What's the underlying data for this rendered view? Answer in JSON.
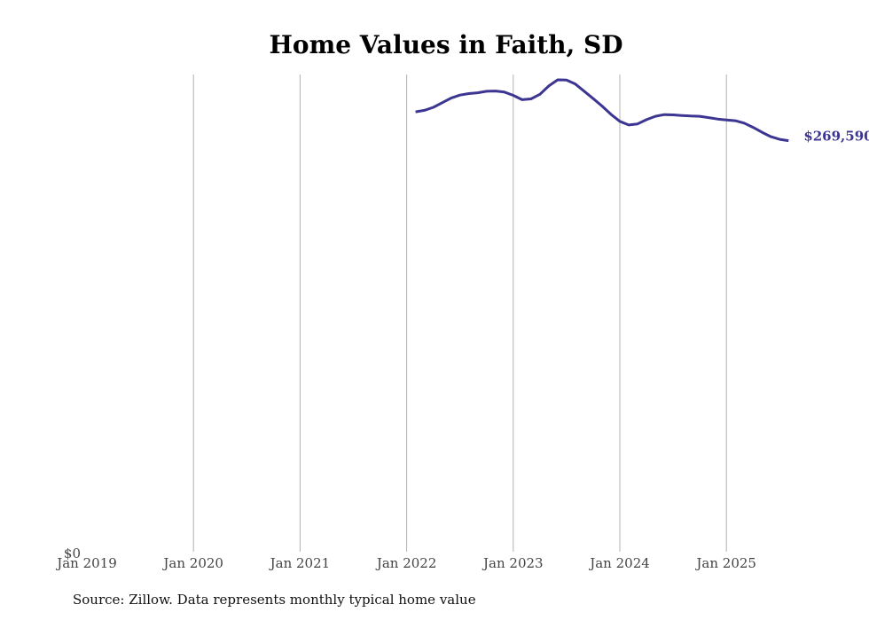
{
  "chart_data": {
    "type": "line",
    "title": "Home Values in Faith, SD",
    "source_note": "Source: Zillow. Data represents monthly typical home value",
    "x_tick_labels": [
      "Jan 2019",
      "Jan 2020",
      "Jan 2021",
      "Jan 2022",
      "Jan 2023",
      "Jan 2024",
      "Jan 2025"
    ],
    "y_tick_labels": [
      "$0"
    ],
    "ylim": [
      0,
      313000
    ],
    "grid": "vertical",
    "series_color": "#3d3592",
    "end_label": "$269,590",
    "series": [
      {
        "x": [
          "2022-02",
          "2022-03",
          "2022-04",
          "2022-05",
          "2022-06",
          "2022-07",
          "2022-08",
          "2022-09",
          "2022-10",
          "2022-11",
          "2022-12",
          "2023-01",
          "2023-02",
          "2023-03",
          "2023-04",
          "2023-05",
          "2023-06",
          "2023-07",
          "2023-08",
          "2023-09",
          "2023-10",
          "2023-11",
          "2023-12",
          "2024-01",
          "2024-02",
          "2024-03",
          "2024-04",
          "2024-05",
          "2024-06",
          "2024-07",
          "2024-08",
          "2024-09",
          "2024-10",
          "2024-11",
          "2024-12",
          "2025-01",
          "2025-02",
          "2025-03",
          "2025-04",
          "2025-05",
          "2025-06",
          "2025-07",
          "2025-08"
        ],
        "values": [
          288500,
          289500,
          291500,
          294500,
          297500,
          299500,
          300500,
          301000,
          302000,
          302200,
          301500,
          299300,
          296500,
          297000,
          300000,
          305500,
          309500,
          309400,
          306700,
          302000,
          297200,
          292300,
          286900,
          282300,
          279900,
          280600,
          283400,
          285600,
          286700,
          286500,
          286100,
          285800,
          285600,
          284700,
          283800,
          283200,
          282700,
          281100,
          278300,
          275100,
          272200,
          270500,
          269590
        ]
      }
    ]
  }
}
